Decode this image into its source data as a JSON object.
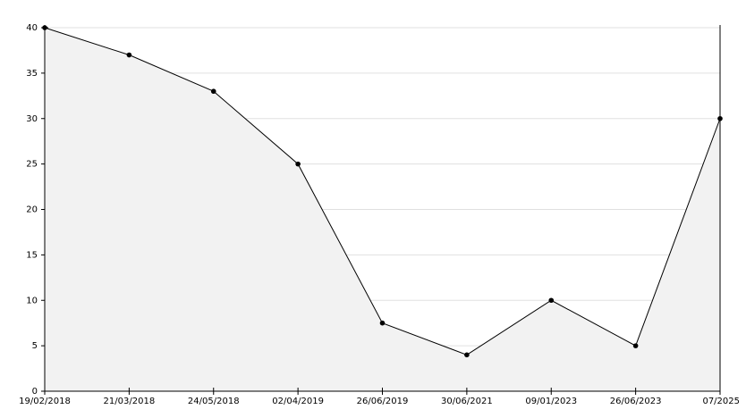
{
  "chart_data": {
    "type": "area",
    "categories": [
      "19/02/2018",
      "21/03/2018",
      "24/05/2018",
      "02/04/2019",
      "26/06/2019",
      "30/06/2021",
      "09/01/2023",
      "26/06/2023",
      "07/2025"
    ],
    "values": [
      40,
      37,
      33,
      25,
      7.5,
      4,
      10,
      5,
      30
    ],
    "color": "#000000",
    "fill": "#f2f2f2",
    "ylim": [
      0,
      40
    ],
    "yticks": [
      0,
      5,
      10,
      15,
      20,
      25,
      30,
      35,
      40
    ],
    "grid": true
  }
}
